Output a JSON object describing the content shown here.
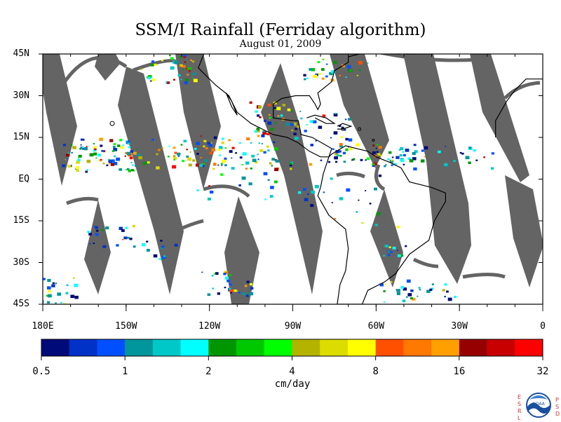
{
  "title": "SSM/I Rainfall (Ferriday algorithm)",
  "subtitle": "August 01, 2009",
  "map": {
    "lon_range": [
      -180,
      0
    ],
    "lat_range": [
      -45,
      45
    ],
    "x_ticks": [
      "180E",
      "150W",
      "120W",
      "90W",
      "60W",
      "30W",
      "0"
    ],
    "y_ticks": [
      "45N",
      "30N",
      "15N",
      "EQ",
      "15S",
      "30S",
      "45S"
    ],
    "no_data_color": "#646464",
    "coastline_color": "#000000"
  },
  "colorbar": {
    "units": "cm/day",
    "tick_labels": [
      "0.5",
      "1",
      "2",
      "4",
      "8",
      "16",
      "32"
    ],
    "colors": [
      "#000a78",
      "#0032c8",
      "#0050ff",
      "#00969b",
      "#00c8c8",
      "#00ffff",
      "#009600",
      "#00c800",
      "#00ff00",
      "#b4b400",
      "#dcdc00",
      "#ffff00",
      "#ff5000",
      "#ff7800",
      "#ffa000",
      "#960000",
      "#c80000",
      "#ff0000"
    ]
  },
  "logo": {
    "left_letters": "ESRL",
    "right_letters": "PSD",
    "emblem": "noaa-emblem"
  }
}
